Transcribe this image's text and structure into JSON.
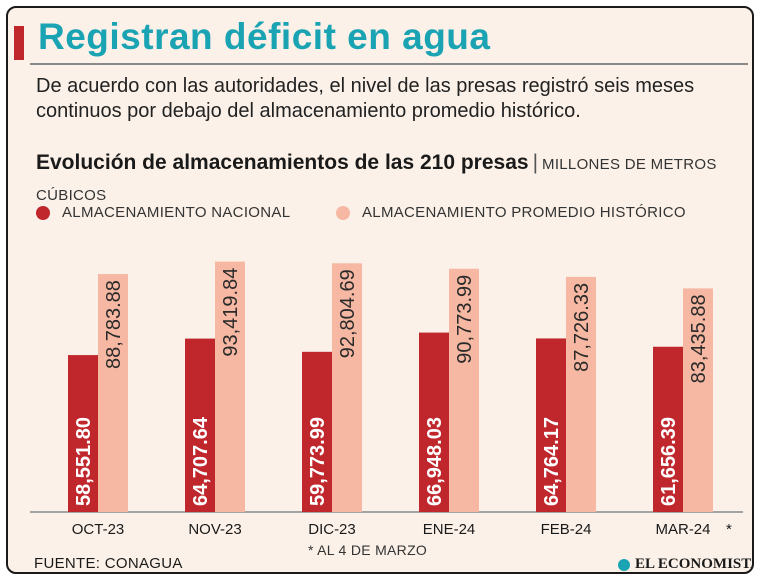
{
  "header": {
    "title": "Registran déficit en agua",
    "subtitle": "De acuerdo con las autoridades, el nivel de las presas registró seis meses continuos por debajo del almacenamiento promedio histórico."
  },
  "chart_header": {
    "title_bold": "Evolución de almacenamientos de las 210 presas",
    "separator": "|",
    "units": "MILLONES DE METROS CÚBICOS"
  },
  "legend": {
    "national": "ALMACENAMIENTO NACIONAL",
    "historic": "ALMACENAMIENTO PROMEDIO HISTÓRICO"
  },
  "colors": {
    "accent": "#1aa3b3",
    "national": "#c0272d",
    "historic": "#f6b8a2",
    "background": "#fbf1e8"
  },
  "chart_data": {
    "type": "bar",
    "title": "Evolución de almacenamientos de las 210 presas",
    "ylabel": "Millones de metros cúbicos",
    "ylim": [
      0,
      100000
    ],
    "categories": [
      "OCT-23",
      "NOV-23",
      "DIC-23",
      "ENE-24",
      "FEB-24",
      "MAR-24"
    ],
    "category_marks": [
      "",
      "",
      "",
      "",
      "",
      "*"
    ],
    "series": [
      {
        "name": "ALMACENAMIENTO NACIONAL",
        "values": [
          58551.8,
          64707.64,
          59773.99,
          66948.03,
          64764.17,
          61656.39
        ],
        "labels": [
          "58,551.80",
          "64,707.64",
          "59,773.99",
          "66,948.03",
          "64,764.17",
          "61,656.39"
        ]
      },
      {
        "name": "ALMACENAMIENTO PROMEDIO HISTÓRICO",
        "values": [
          88783.88,
          93419.84,
          92804.69,
          90773.99,
          87726.33,
          83435.88
        ],
        "labels": [
          "88,783.88",
          "93,419.84",
          "92,804.69",
          "90,773.99",
          "87,726.33",
          "83,435.88"
        ]
      }
    ]
  },
  "footer": {
    "footnote": "*  AL  4 DE MARZO",
    "source": "FUENTE: CONAGUA",
    "logo": "EL ECONOMISTA"
  }
}
